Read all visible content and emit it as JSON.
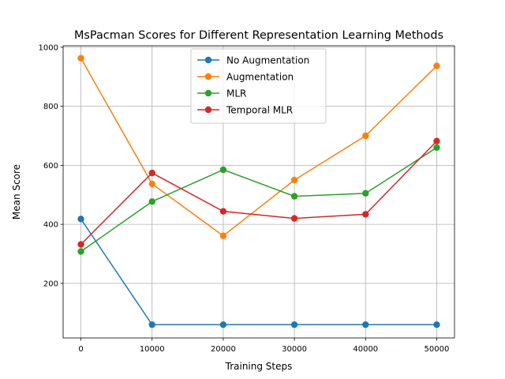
{
  "chart_data": {
    "type": "line",
    "title": "MsPacman Scores for Different Representation Learning Methods",
    "xlabel": "Training Steps",
    "ylabel": "Mean Score",
    "x": [
      0,
      10000,
      20000,
      30000,
      40000,
      50000
    ],
    "xticks": [
      0,
      10000,
      20000,
      30000,
      40000,
      50000
    ],
    "yticks": [
      200,
      400,
      600,
      800,
      1000
    ],
    "xlim": [
      -2500,
      52500
    ],
    "ylim": [
      15,
      1005
    ],
    "grid": true,
    "legend_position": "top-center",
    "series": [
      {
        "name": "No Augmentation",
        "color": "#1f77b4",
        "values": [
          418,
          60,
          60,
          60,
          60,
          60
        ]
      },
      {
        "name": "Augmentation",
        "color": "#ff7f0e",
        "values": [
          963,
          537,
          361,
          550,
          700,
          937
        ]
      },
      {
        "name": "MLR",
        "color": "#2ca02c",
        "values": [
          308,
          477,
          585,
          495,
          505,
          660
        ]
      },
      {
        "name": "Temporal MLR",
        "color": "#d62728",
        "values": [
          332,
          574,
          444,
          420,
          434,
          682
        ]
      }
    ]
  }
}
